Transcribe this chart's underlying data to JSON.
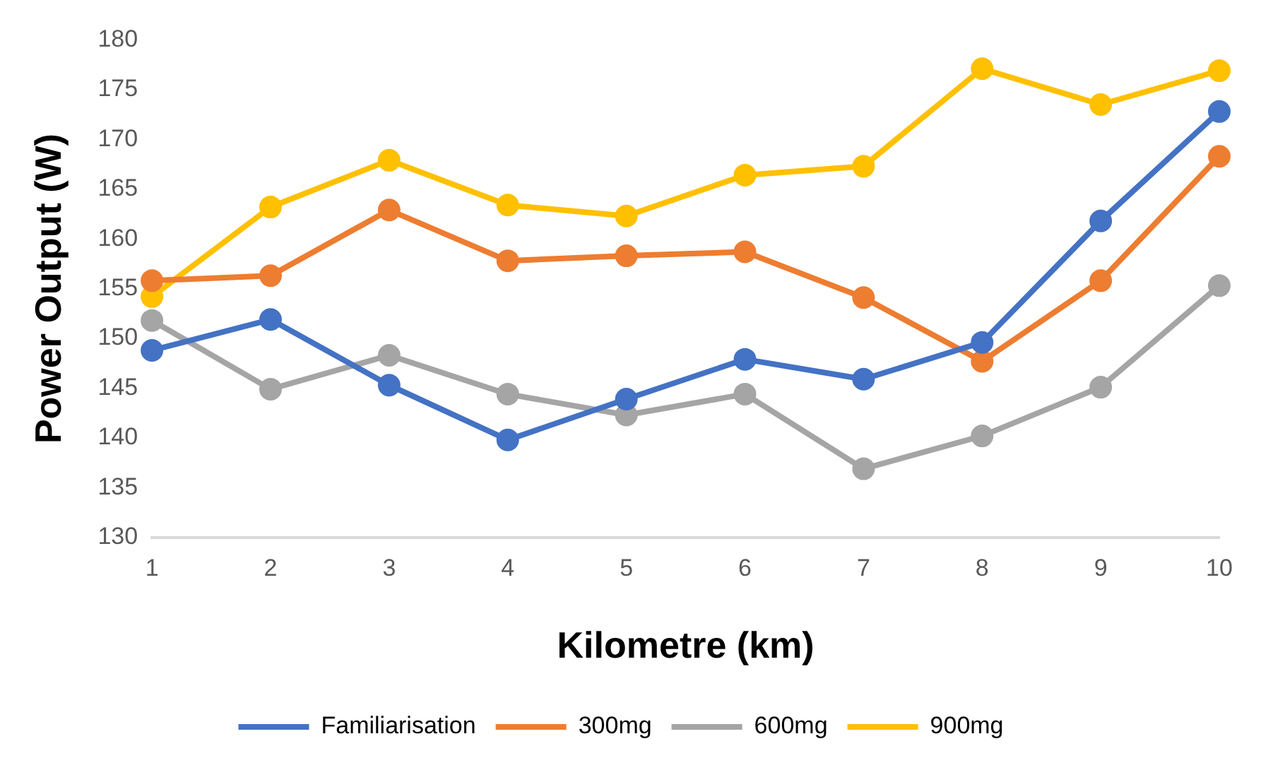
{
  "chart_data": {
    "type": "line",
    "xlabel": "Kilometre (km)",
    "ylabel": "Power Output (W)",
    "categories": [
      "1",
      "2",
      "3",
      "4",
      "5",
      "6",
      "7",
      "8",
      "9",
      "10"
    ],
    "ylim": [
      130,
      180
    ],
    "yticks": [
      130,
      135,
      140,
      145,
      150,
      155,
      160,
      165,
      170,
      175,
      180
    ],
    "grid": false,
    "legend": "bottom",
    "marker": "circle",
    "line_style": "solid",
    "series": [
      {
        "name": "Familiarisation",
        "color": "#4472c4",
        "values": [
          148.8,
          151.9,
          145.3,
          139.8,
          143.9,
          147.9,
          145.9,
          149.6,
          161.8,
          172.8
        ]
      },
      {
        "name": "300mg",
        "color": "#ed7d31",
        "values": [
          155.8,
          156.3,
          162.9,
          157.8,
          158.3,
          158.7,
          154.1,
          147.7,
          155.8,
          168.3
        ]
      },
      {
        "name": "600mg",
        "color": "#a5a5a5",
        "values": [
          151.8,
          144.9,
          148.3,
          144.4,
          142.3,
          144.4,
          136.9,
          140.2,
          145.1,
          155.3
        ]
      },
      {
        "name": "900mg",
        "color": "#ffc000",
        "values": [
          154.2,
          163.2,
          167.9,
          163.4,
          162.3,
          166.4,
          167.3,
          177.1,
          173.5,
          176.9
        ]
      }
    ]
  }
}
